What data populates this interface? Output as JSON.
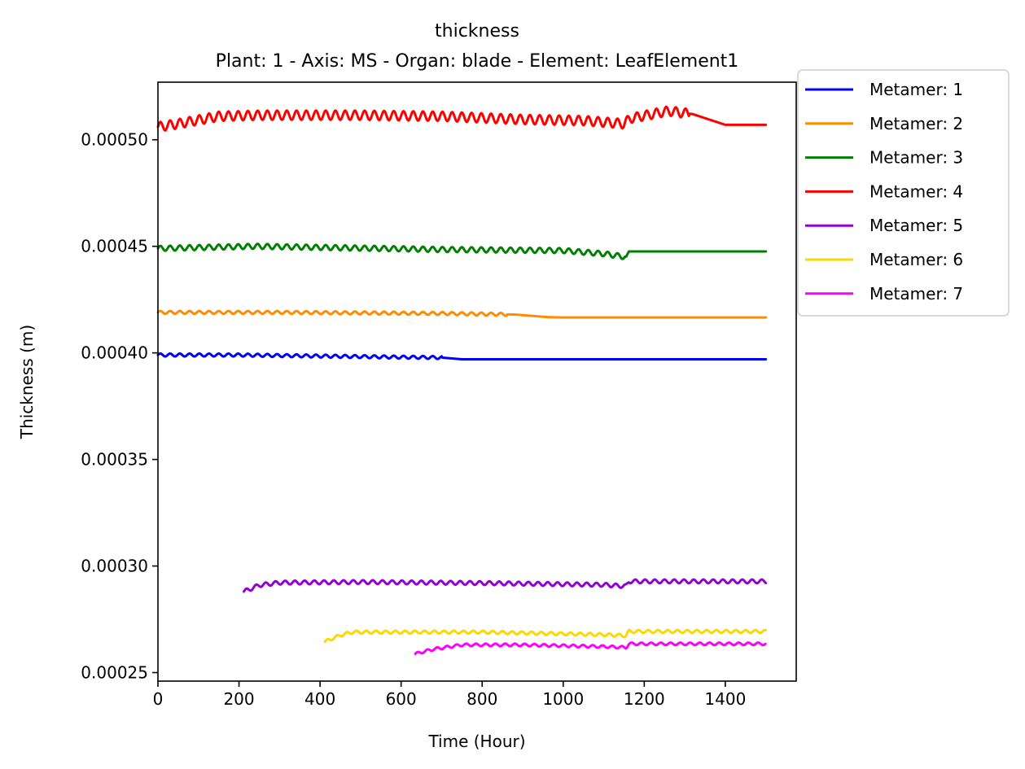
{
  "chart_data": {
    "type": "line",
    "title": "thickness",
    "subtitle": "Plant: 1 - Axis: MS - Organ: blade - Element: LeafElement1",
    "xlabel": "Time (Hour)",
    "ylabel": "Thickness (m)",
    "xlim": [
      0,
      1575
    ],
    "ylim": [
      0.000246,
      0.000527
    ],
    "xticks": [
      0,
      200,
      400,
      600,
      800,
      1000,
      1200,
      1400
    ],
    "xtick_labels": [
      "0",
      "200",
      "400",
      "600",
      "800",
      "1000",
      "1200",
      "1400"
    ],
    "yticks": [
      0.00025,
      0.0003,
      0.00035,
      0.0004,
      0.00045,
      0.0005
    ],
    "ytick_labels": [
      "0.00025",
      "0.00030",
      "0.00035",
      "0.00040",
      "0.00045",
      "0.00050"
    ],
    "grid": false,
    "legend_position": "outside-top-right",
    "series": [
      {
        "name": "Metamer: 1",
        "color": "#0000ff",
        "osc_amp": 7e-07,
        "osc_until": 700,
        "points": [
          [
            0,
            0.000399
          ],
          [
            200,
            0.000399
          ],
          [
            600,
            0.000398
          ],
          [
            700,
            0.0003978
          ],
          [
            750,
            0.000397
          ],
          [
            1500,
            0.000397
          ]
        ]
      },
      {
        "name": "Metamer: 2",
        "color": "#ff8c00",
        "osc_amp": 7e-07,
        "osc_until": 860,
        "points": [
          [
            0,
            0.000419
          ],
          [
            300,
            0.000419
          ],
          [
            700,
            0.0004185
          ],
          [
            880,
            0.000418
          ],
          [
            960,
            0.0004168
          ],
          [
            1000,
            0.0004166
          ],
          [
            1500,
            0.0004166
          ]
        ]
      },
      {
        "name": "Metamer: 3",
        "color": "#008000",
        "osc_amp": 1.2e-06,
        "osc_until": 1150,
        "points": [
          [
            0,
            0.000449
          ],
          [
            240,
            0.00045
          ],
          [
            700,
            0.0004485
          ],
          [
            1000,
            0.000448
          ],
          [
            1100,
            0.0004465
          ],
          [
            1155,
            0.000445
          ],
          [
            1162,
            0.0004476
          ],
          [
            1500,
            0.0004476
          ]
        ]
      },
      {
        "name": "Metamer: 4",
        "color": "#ff0000",
        "osc_amp": 2.2e-06,
        "osc_until": 1310,
        "points": [
          [
            0,
            0.000506
          ],
          [
            50,
            0.0005075
          ],
          [
            150,
            0.000511
          ],
          [
            250,
            0.0005115
          ],
          [
            500,
            0.0005115
          ],
          [
            700,
            0.000511
          ],
          [
            900,
            0.0005095
          ],
          [
            1050,
            0.000509
          ],
          [
            1150,
            0.0005075
          ],
          [
            1165,
            0.00051
          ],
          [
            1260,
            0.0005135
          ],
          [
            1320,
            0.000512
          ],
          [
            1400,
            0.000507
          ],
          [
            1500,
            0.000507
          ]
        ]
      },
      {
        "name": "Metamer: 5",
        "color": "#9400d3",
        "osc_amp": 9e-07,
        "osc_until": 1500,
        "points": [
          [
            212,
            0.000288
          ],
          [
            250,
            0.000291
          ],
          [
            300,
            0.0002922
          ],
          [
            500,
            0.0002925
          ],
          [
            800,
            0.000292
          ],
          [
            1100,
            0.0002912
          ],
          [
            1155,
            0.0002905
          ],
          [
            1162,
            0.0002928
          ],
          [
            1500,
            0.0002928
          ]
        ]
      },
      {
        "name": "Metamer: 6",
        "color": "#ffd700",
        "osc_amp": 7e-07,
        "osc_until": 1500,
        "points": [
          [
            412,
            0.0002645
          ],
          [
            450,
            0.0002675
          ],
          [
            480,
            0.000269
          ],
          [
            800,
            0.000269
          ],
          [
            1100,
            0.0002678
          ],
          [
            1155,
            0.0002673
          ],
          [
            1162,
            0.0002693
          ],
          [
            1500,
            0.0002693
          ]
        ]
      },
      {
        "name": "Metamer: 7",
        "color": "#ff00ff",
        "osc_amp": 6e-07,
        "osc_until": 1500,
        "points": [
          [
            635,
            0.0002588
          ],
          [
            680,
            0.000261
          ],
          [
            750,
            0.000263
          ],
          [
            900,
            0.000263
          ],
          [
            1100,
            0.0002622
          ],
          [
            1155,
            0.0002618
          ],
          [
            1162,
            0.0002635
          ],
          [
            1500,
            0.0002635
          ]
        ]
      }
    ]
  }
}
